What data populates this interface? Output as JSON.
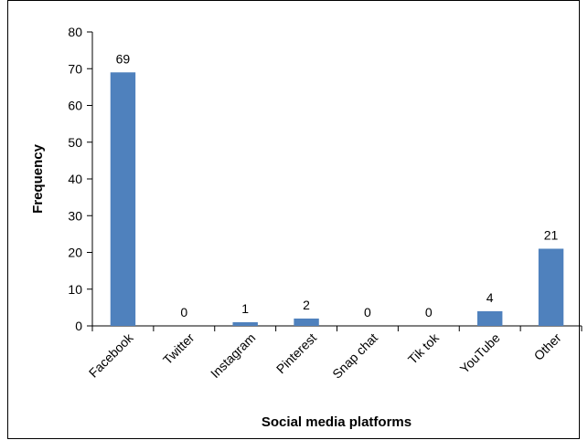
{
  "chart_data": {
    "type": "bar",
    "categories": [
      "Facebook",
      "Twitter",
      "Instagram",
      "Pinterest",
      "Snap chat",
      "Tik tok",
      "YouTube",
      "Other"
    ],
    "values": [
      69,
      0,
      1,
      2,
      0,
      0,
      4,
      21
    ],
    "data_labels": [
      "69",
      "0",
      "1",
      "2",
      "0",
      "0",
      "4",
      "21"
    ],
    "xlabel": "Social media platforms",
    "ylabel": "Frequency",
    "ylim": [
      0,
      80
    ],
    "yticks": [
      "0",
      "10",
      "20",
      "30",
      "40",
      "50",
      "60",
      "70",
      "80"
    ],
    "grid": false,
    "legend": "none",
    "bar_color": "#4f81bd"
  }
}
